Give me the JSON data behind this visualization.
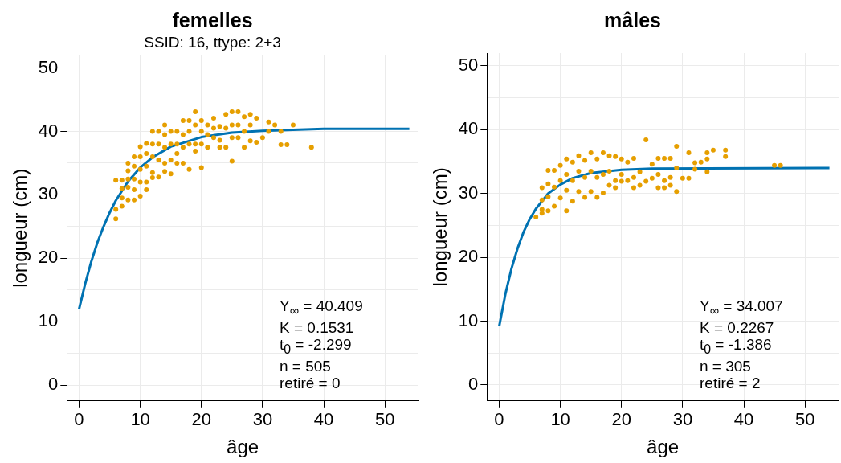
{
  "chart_data": [
    {
      "type": "scatter",
      "title": "femelles",
      "subtitle": "SSID: 16, ttype: 2+3",
      "xlabel": "âge",
      "ylabel": "longueur (cm)",
      "xlim": [
        -2,
        55.5
      ],
      "ylim": [
        -2.5,
        52
      ],
      "xticks": [
        0,
        10,
        20,
        30,
        40,
        50
      ],
      "yticks": [
        0,
        {
          "value": 5,
          "label": null
        },
        10,
        {
          "value": 15,
          "label": null
        },
        20,
        {
          "value": 25,
          "label": null
        },
        30,
        {
          "value": 35,
          "label": null
        },
        40,
        {
          "value": 45,
          "label": null
        },
        50
      ],
      "grid": true,
      "annotations": [
        "Y$_{∞}$ = 40.409",
        "K = 0.1531",
        "t$_{0}$ = -2.299",
        "n = 505",
        "retiré = 0"
      ],
      "series": [
        {
          "type": "scatter",
          "color": "#e69f00",
          "marker": "circle",
          "x": [
            6,
            6,
            6,
            7,
            7,
            7,
            7,
            8,
            8,
            8,
            8,
            8,
            9,
            9,
            9,
            9,
            9,
            10,
            10,
            10,
            10,
            10,
            11,
            11,
            11,
            11,
            11,
            12,
            12,
            12,
            12,
            12,
            13,
            13,
            13,
            13,
            14,
            14,
            14,
            14,
            14,
            15,
            15,
            15,
            15,
            16,
            16,
            16,
            16,
            17,
            17,
            17,
            17,
            18,
            18,
            18,
            18,
            19,
            19,
            19,
            19,
            20,
            20,
            20,
            20,
            21,
            21,
            21,
            22,
            22,
            22,
            23,
            23,
            23,
            24,
            24,
            24,
            25,
            25,
            25,
            25,
            26,
            26,
            26,
            27,
            27,
            27,
            28,
            28,
            28,
            29,
            29,
            30,
            31,
            31,
            32,
            33,
            33,
            34,
            35,
            38
          ],
          "values": [
            32.3,
            27.7,
            26.2,
            32.3,
            31.0,
            29.5,
            28.2,
            35.0,
            33.8,
            32.5,
            31.2,
            29.2,
            36.0,
            34.5,
            32.5,
            30.8,
            29.2,
            37.6,
            36.0,
            34.0,
            32.0,
            29.8,
            38.1,
            36.5,
            34.5,
            32.0,
            30.8,
            40.0,
            38.0,
            36.0,
            33.5,
            32.7,
            40.0,
            38.0,
            35.5,
            32.8,
            41.0,
            39.5,
            37.5,
            35.0,
            33.7,
            40.0,
            38.0,
            35.5,
            33.3,
            40.0,
            38.0,
            36.5,
            35.0,
            41.7,
            39.5,
            37.5,
            35.0,
            41.7,
            40.0,
            38.0,
            34.0,
            43.1,
            41.0,
            38.0,
            36.9,
            41.7,
            40.0,
            38.0,
            34.3,
            41.0,
            39.5,
            37.5,
            42.1,
            40.5,
            39.0,
            40.8,
            38.6,
            37.5,
            42.7,
            40.5,
            37.5,
            43.1,
            41.0,
            39.0,
            35.3,
            43.1,
            41.0,
            39.0,
            42.3,
            40.0,
            37.5,
            42.7,
            41.0,
            38.5,
            42.1,
            38.3,
            39.0,
            41.5,
            40.0,
            41.0,
            40.0,
            37.9,
            37.9,
            41.0,
            37.5
          ]
        },
        {
          "type": "line",
          "color": "#0072b2",
          "marker": "none",
          "line_style": "solid",
          "x": [
            0,
            1,
            2,
            3,
            4,
            5,
            6,
            8,
            10,
            12,
            15,
            20,
            25,
            30,
            40,
            54
          ],
          "values": [
            12.0,
            16.0,
            19.5,
            22.5,
            25.0,
            27.2,
            29.1,
            32.1,
            34.3,
            35.9,
            37.6,
            39.1,
            39.8,
            40.1,
            40.4,
            40.4
          ]
        }
      ]
    },
    {
      "type": "scatter",
      "title": "mâles",
      "xlabel": "âge",
      "ylabel": "longueur (cm)",
      "xlim": [
        -2,
        55.5
      ],
      "ylim": [
        -2.5,
        52
      ],
      "xticks": [
        0,
        10,
        20,
        30,
        40,
        50
      ],
      "yticks": [
        0,
        {
          "value": 5,
          "label": null
        },
        10,
        {
          "value": 15,
          "label": null
        },
        20,
        {
          "value": 25,
          "label": null
        },
        30,
        {
          "value": 35,
          "label": null
        },
        40,
        {
          "value": 45,
          "label": null
        },
        50
      ],
      "grid": true,
      "annotations": [
        "Y$_{∞}$ = 34.007",
        "K = 0.2267",
        "t$_{0}$ = -1.386",
        "n = 305",
        "retiré = 2"
      ],
      "series": [
        {
          "type": "scatter",
          "color": "#e69f00",
          "marker": "circle",
          "x": [
            6,
            7,
            7,
            7,
            7,
            8,
            8,
            8,
            8,
            9,
            9,
            9,
            10,
            10,
            10,
            11,
            11,
            11,
            11,
            12,
            12,
            12,
            13,
            13,
            13,
            14,
            14,
            14,
            15,
            15,
            15,
            16,
            16,
            16,
            17,
            17,
            17,
            18,
            18,
            18,
            19,
            19,
            19,
            20,
            20,
            20,
            21,
            21,
            22,
            22,
            22,
            23,
            23,
            24,
            24,
            25,
            25,
            26,
            26,
            26,
            27,
            27,
            27,
            28,
            28,
            28,
            29,
            29,
            29,
            30,
            31,
            31,
            32,
            32,
            33,
            34,
            34,
            34,
            35,
            37,
            37,
            45,
            46
          ],
          "values": [
            26.3,
            30.9,
            29.0,
            27.5,
            26.9,
            33.6,
            31.5,
            29.5,
            27.3,
            33.6,
            31.0,
            28.0,
            34.4,
            32.0,
            29.3,
            35.4,
            33.0,
            30.5,
            27.3,
            34.9,
            32.0,
            28.8,
            35.9,
            33.5,
            30.3,
            35.2,
            32.5,
            29.4,
            36.4,
            33.5,
            30.3,
            35.4,
            32.5,
            29.4,
            36.4,
            33.0,
            30.1,
            35.9,
            33.5,
            31.3,
            35.8,
            32.0,
            30.9,
            35.4,
            33.0,
            31.9,
            34.9,
            32.0,
            35.5,
            32.5,
            30.9,
            33.4,
            31.3,
            38.4,
            31.9,
            34.6,
            32.4,
            35.5,
            33.0,
            30.9,
            35.5,
            32.0,
            30.9,
            35.5,
            32.5,
            31.3,
            37.4,
            34.0,
            30.3,
            32.4,
            36.4,
            32.4,
            34.8,
            33.8,
            34.9,
            36.4,
            35.4,
            33.4,
            36.8,
            36.8,
            35.8,
            34.4,
            34.4
          ]
        },
        {
          "type": "line",
          "color": "#0072b2",
          "marker": "none",
          "line_style": "solid",
          "x": [
            0,
            1,
            2,
            3,
            4,
            5,
            6,
            8,
            10,
            12,
            15,
            20,
            25,
            54
          ],
          "values": [
            9.2,
            14.2,
            18.2,
            21.4,
            24.0,
            26.0,
            27.6,
            30.0,
            31.4,
            32.4,
            33.2,
            33.7,
            33.9,
            34.0
          ]
        }
      ]
    }
  ]
}
